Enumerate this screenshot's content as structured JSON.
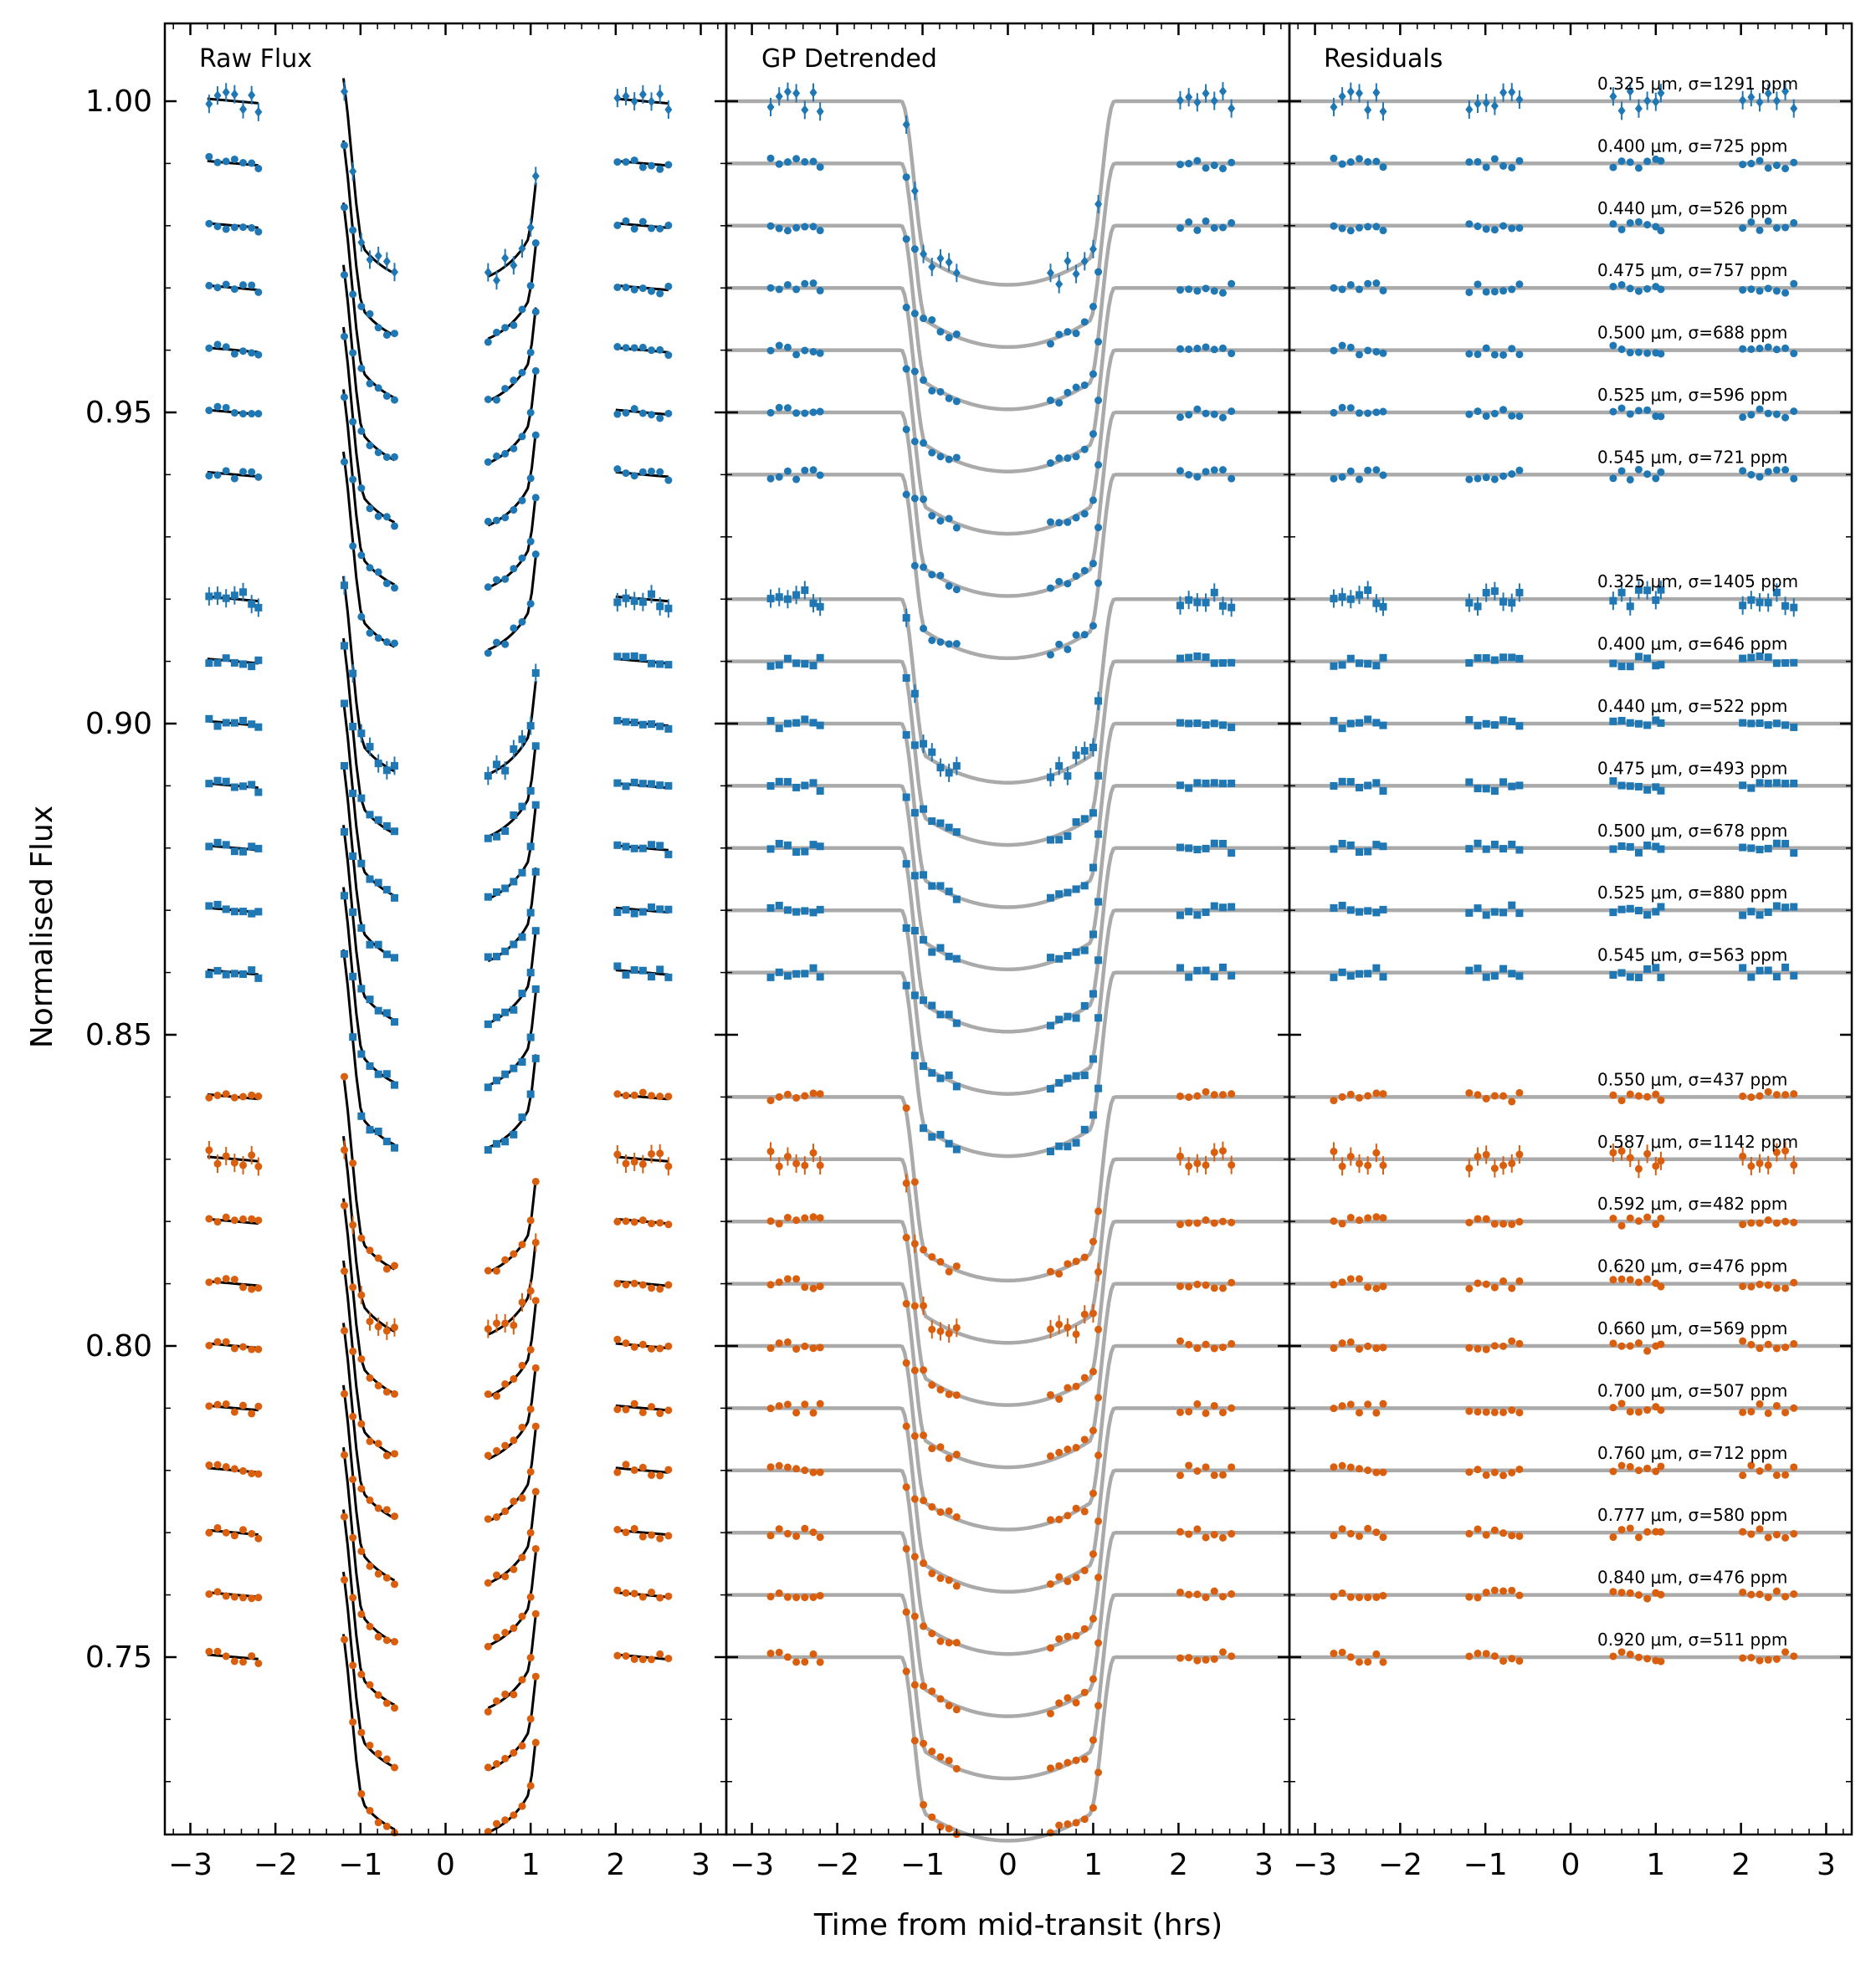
{
  "chart_data": {
    "type": "scatter",
    "layout": "three panels sharing a y-axis",
    "xlabel": "Time from mid-transit (hrs)",
    "ylabel": "Normalised Flux",
    "xlim": [
      -3.3,
      3.3
    ],
    "ylim": [
      0.7215,
      1.0125
    ],
    "xticks": [
      -3,
      -2,
      -1,
      0,
      1,
      2,
      3
    ],
    "xtick_labels": [
      "−3",
      "−2",
      "−1",
      "0",
      "1",
      "2",
      "3"
    ],
    "yticks": [
      0.75,
      0.8,
      0.85,
      0.9,
      0.95,
      1.0
    ],
    "ytick_labels": [
      "0.75",
      "0.80",
      "0.85",
      "0.90",
      "0.95",
      "1.00"
    ],
    "panels": [
      {
        "title": "Raw Flux"
      },
      {
        "title": "GP Detrended"
      },
      {
        "title": "Residuals"
      }
    ],
    "colors": {
      "blue": "#1f77b4",
      "orange": "#d95f0e",
      "model": "#aaaaaa",
      "systematics": "#000000"
    },
    "transit": {
      "t1": 1.25,
      "t2": 0.95,
      "depth": 0.0295
    },
    "time_points": [
      -2.78,
      -2.68,
      -2.58,
      -2.48,
      -2.38,
      -2.28,
      -2.2,
      -1.19,
      -1.09,
      -0.99,
      -0.89,
      -0.79,
      -0.69,
      -0.6,
      0.5,
      0.6,
      0.7,
      0.8,
      0.9,
      1.0,
      1.06,
      2.02,
      2.12,
      2.22,
      2.32,
      2.42,
      2.52,
      2.62
    ],
    "series": [
      {
        "group": 1,
        "color": "blue",
        "marker": "diamond",
        "offset": 1.0,
        "wavelength": "0.325",
        "sigma": "1291",
        "label": "0.325 μm, σ=1291 ppm"
      },
      {
        "group": 1,
        "color": "blue",
        "marker": "circle",
        "offset": 0.99,
        "wavelength": "0.400",
        "sigma": "725",
        "label": "0.400 μm, σ=725 ppm"
      },
      {
        "group": 1,
        "color": "blue",
        "marker": "circle",
        "offset": 0.98,
        "wavelength": "0.440",
        "sigma": "526",
        "label": "0.440 μm, σ=526 ppm"
      },
      {
        "group": 1,
        "color": "blue",
        "marker": "circle",
        "offset": 0.97,
        "wavelength": "0.475",
        "sigma": "757",
        "label": "0.475 μm, σ=757 ppm"
      },
      {
        "group": 1,
        "color": "blue",
        "marker": "circle",
        "offset": 0.96,
        "wavelength": "0.500",
        "sigma": "688",
        "label": "0.500 μm, σ=688 ppm"
      },
      {
        "group": 1,
        "color": "blue",
        "marker": "circle",
        "offset": 0.95,
        "wavelength": "0.525",
        "sigma": "596",
        "label": "0.525 μm, σ=596 ppm"
      },
      {
        "group": 1,
        "color": "blue",
        "marker": "circle",
        "offset": 0.94,
        "wavelength": "0.545",
        "sigma": "721",
        "label": "0.545 μm, σ=721 ppm"
      },
      {
        "group": 2,
        "color": "blue",
        "marker": "square",
        "offset": 0.92,
        "wavelength": "0.325",
        "sigma": "1405",
        "label": "0.325 μm, σ=1405 ppm"
      },
      {
        "group": 2,
        "color": "blue",
        "marker": "square",
        "offset": 0.91,
        "wavelength": "0.400",
        "sigma": "646",
        "label": "0.400 μm, σ=646 ppm"
      },
      {
        "group": 2,
        "color": "blue",
        "marker": "square",
        "offset": 0.9,
        "wavelength": "0.440",
        "sigma": "522",
        "label": "0.440 μm, σ=522 ppm"
      },
      {
        "group": 2,
        "color": "blue",
        "marker": "square",
        "offset": 0.89,
        "wavelength": "0.475",
        "sigma": "493",
        "label": "0.475 μm, σ=493 ppm"
      },
      {
        "group": 2,
        "color": "blue",
        "marker": "square",
        "offset": 0.88,
        "wavelength": "0.500",
        "sigma": "678",
        "label": "0.500 μm, σ=678 ppm"
      },
      {
        "group": 2,
        "color": "blue",
        "marker": "square",
        "offset": 0.87,
        "wavelength": "0.525",
        "sigma": "880",
        "label": "0.525 μm, σ=880 ppm"
      },
      {
        "group": 2,
        "color": "blue",
        "marker": "square",
        "offset": 0.86,
        "wavelength": "0.545",
        "sigma": "563",
        "label": "0.545 μm, σ=563 ppm"
      },
      {
        "group": 3,
        "color": "orange",
        "marker": "circle",
        "offset": 0.84,
        "wavelength": "0.550",
        "sigma": "437",
        "label": "0.550 μm, σ=437 ppm"
      },
      {
        "group": 3,
        "color": "orange",
        "marker": "circle",
        "offset": 0.83,
        "wavelength": "0.587",
        "sigma": "1142",
        "label": "0.587 μm, σ=1142 ppm"
      },
      {
        "group": 3,
        "color": "orange",
        "marker": "circle",
        "offset": 0.82,
        "wavelength": "0.592",
        "sigma": "482",
        "label": "0.592 μm, σ=482 ppm"
      },
      {
        "group": 3,
        "color": "orange",
        "marker": "circle",
        "offset": 0.81,
        "wavelength": "0.620",
        "sigma": "476",
        "label": "0.620 μm, σ=476 ppm"
      },
      {
        "group": 3,
        "color": "orange",
        "marker": "circle",
        "offset": 0.8,
        "wavelength": "0.660",
        "sigma": "569",
        "label": "0.660 μm, σ=569 ppm"
      },
      {
        "group": 3,
        "color": "orange",
        "marker": "circle",
        "offset": 0.79,
        "wavelength": "0.700",
        "sigma": "507",
        "label": "0.700 μm, σ=507 ppm"
      },
      {
        "group": 3,
        "color": "orange",
        "marker": "circle",
        "offset": 0.78,
        "wavelength": "0.760",
        "sigma": "712",
        "label": "0.760 μm, σ=712 ppm"
      },
      {
        "group": 3,
        "color": "orange",
        "marker": "circle",
        "offset": 0.77,
        "wavelength": "0.777",
        "sigma": "580",
        "label": "0.777 μm, σ=580 ppm"
      },
      {
        "group": 3,
        "color": "orange",
        "marker": "circle",
        "offset": 0.76,
        "wavelength": "0.840",
        "sigma": "476",
        "label": "0.840 μm, σ=476 ppm"
      },
      {
        "group": 3,
        "color": "orange",
        "marker": "circle",
        "offset": 0.75,
        "wavelength": "0.920",
        "sigma": "511",
        "label": "0.920 μm, σ=511 ppm"
      }
    ]
  }
}
